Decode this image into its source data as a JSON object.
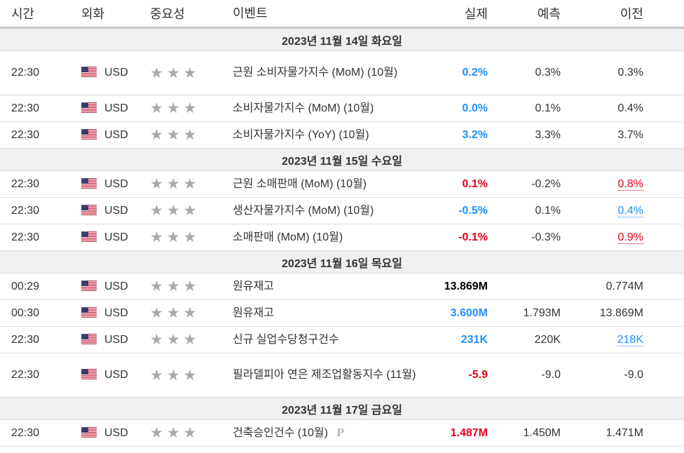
{
  "headers": {
    "time": "시간",
    "currency": "외화",
    "importance": "중요성",
    "event": "이벤트",
    "actual": "실제",
    "forecast": "예측",
    "previous": "이전"
  },
  "icons": {
    "flag": "us-flag-icon",
    "star": "star-icon"
  },
  "colors": {
    "positive": "#1e90ff",
    "negative": "#e4001b",
    "neutral": "#000000"
  },
  "days": [
    {
      "date": "2023년 11월 14일 화요일",
      "events": [
        {
          "time": "22:30",
          "currency": "USD",
          "stars": 3,
          "event": "근원 소비자물가지수 (MoM) (10월)",
          "actual": "0.2%",
          "actual_status": "positive",
          "forecast": "0.3%",
          "previous": "0.3%",
          "previous_revision": "",
          "tall": true
        },
        {
          "time": "22:30",
          "currency": "USD",
          "stars": 3,
          "event": "소비자물가지수 (MoM) (10월)",
          "actual": "0.0%",
          "actual_status": "positive",
          "forecast": "0.1%",
          "previous": "0.4%",
          "previous_revision": ""
        },
        {
          "time": "22:30",
          "currency": "USD",
          "stars": 3,
          "event": "소비자물가지수 (YoY) (10월)",
          "actual": "3.2%",
          "actual_status": "positive",
          "forecast": "3.3%",
          "previous": "3.7%",
          "previous_revision": ""
        }
      ]
    },
    {
      "date": "2023년 11월 15일 수요일",
      "events": [
        {
          "time": "22:30",
          "currency": "USD",
          "stars": 3,
          "event": "근원 소매판매 (MoM) (10월)",
          "actual": "0.1%",
          "actual_status": "negative",
          "forecast": "-0.2%",
          "previous": "0.8%",
          "previous_revision": "down"
        },
        {
          "time": "22:30",
          "currency": "USD",
          "stars": 3,
          "event": "생산자물가지수 (MoM) (10월)",
          "actual": "-0.5%",
          "actual_status": "positive",
          "forecast": "0.1%",
          "previous": "0.4%",
          "previous_revision": "up"
        },
        {
          "time": "22:30",
          "currency": "USD",
          "stars": 3,
          "event": "소매판매 (MoM) (10월)",
          "actual": "-0.1%",
          "actual_status": "negative",
          "forecast": "-0.3%",
          "previous": "0.9%",
          "previous_revision": "down"
        }
      ]
    },
    {
      "date": "2023년 11월 16일 목요일",
      "events": [
        {
          "time": "00:29",
          "currency": "USD",
          "stars": 3,
          "event": "원유재고",
          "actual": "13.869M",
          "actual_status": "neutral",
          "forecast": "",
          "previous": "0.774M",
          "previous_revision": ""
        },
        {
          "time": "00:30",
          "currency": "USD",
          "stars": 3,
          "event": "원유재고",
          "actual": "3.600M",
          "actual_status": "positive",
          "forecast": "1.793M",
          "previous": "13.869M",
          "previous_revision": ""
        },
        {
          "time": "22:30",
          "currency": "USD",
          "stars": 3,
          "event": "신규 실업수당청구건수",
          "actual": "231K",
          "actual_status": "positive",
          "forecast": "220K",
          "previous": "218K",
          "previous_revision": "up"
        },
        {
          "time": "22:30",
          "currency": "USD",
          "stars": 3,
          "event": "필라델피아 연은 제조업활동지수 (11월)",
          "actual": "-5.9",
          "actual_status": "negative",
          "forecast": "-9.0",
          "previous": "-9.0",
          "previous_revision": "",
          "tall": true
        }
      ]
    },
    {
      "date": "2023년 11월 17일 금요일",
      "events": [
        {
          "time": "22:30",
          "currency": "USD",
          "stars": 3,
          "event": "건축승인건수 (10월)",
          "preliminary_mark": "P",
          "actual": "1.487M",
          "actual_status": "negative",
          "forecast": "1.450M",
          "previous": "1.471M",
          "previous_revision": ""
        }
      ]
    }
  ]
}
